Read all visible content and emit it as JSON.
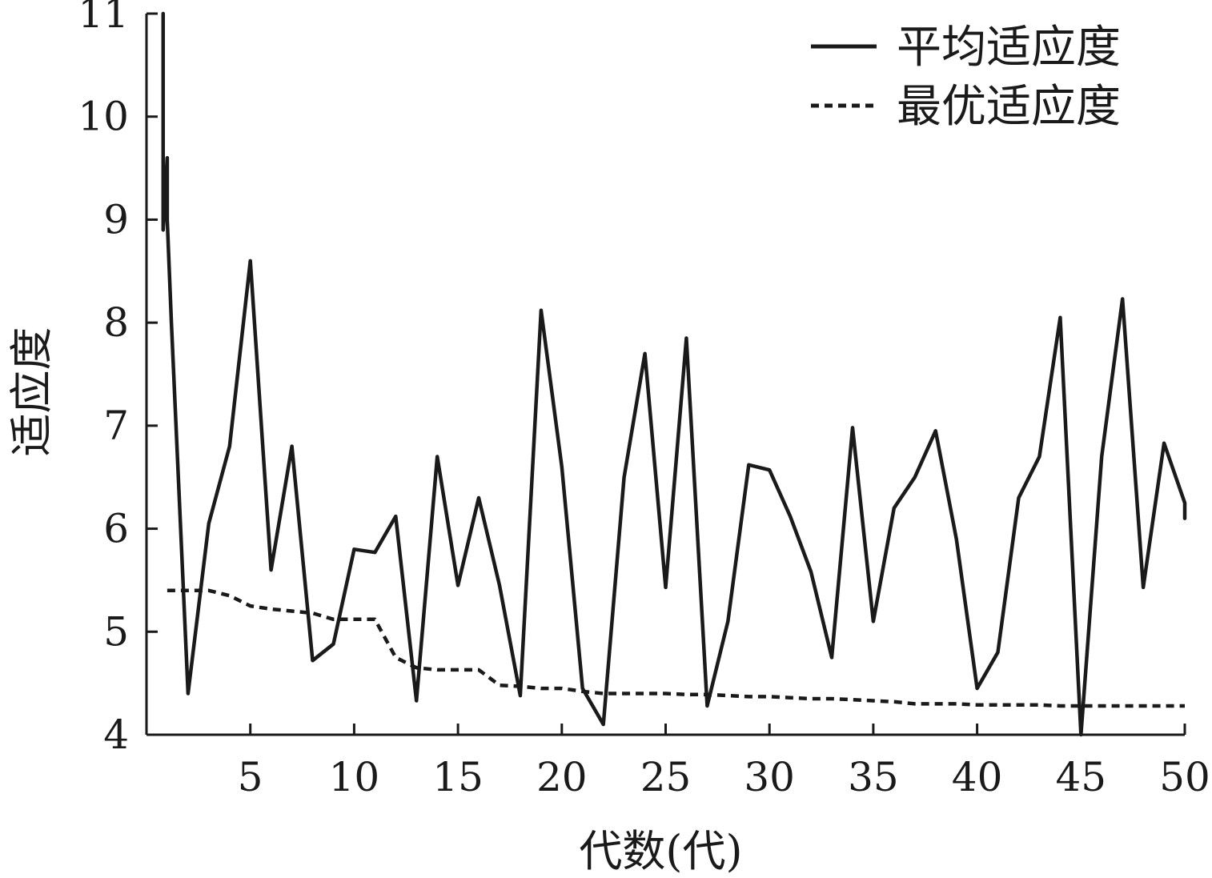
{
  "chart_data": {
    "type": "line",
    "title": "",
    "xlabel": "代数(代)",
    "ylabel": "适应度",
    "xlim": [
      0,
      50
    ],
    "ylim": [
      4,
      11
    ],
    "xticks": [
      5,
      10,
      15,
      20,
      25,
      30,
      35,
      40,
      45,
      50
    ],
    "xtick_labels": [
      "5",
      "10",
      "15",
      "20",
      "25",
      "30",
      "35",
      "40",
      "45",
      "50"
    ],
    "yticks": [
      4,
      5,
      6,
      7,
      8,
      9,
      10,
      11
    ],
    "ytick_labels": [
      "4",
      "5",
      "6",
      "7",
      "8",
      "9",
      "10",
      "11"
    ],
    "grid": false,
    "legend_position": "top-right",
    "series": [
      {
        "name": "平均适应度",
        "style": "solid",
        "color": "#1a1a1a",
        "x": [
          0.8,
          0.8,
          1,
          1,
          1.2,
          2,
          3,
          4,
          5,
          6,
          7,
          8,
          9,
          10,
          11,
          12,
          13,
          14,
          15,
          16,
          17,
          18,
          19,
          20,
          21,
          22,
          23,
          24,
          25,
          26,
          27,
          28,
          29,
          30,
          31,
          32,
          33,
          34,
          35,
          36,
          37,
          38,
          39,
          40,
          41,
          42,
          43,
          44,
          45,
          46,
          47,
          48,
          49,
          50,
          50
        ],
        "values": [
          11.0,
          8.9,
          9.6,
          9.0,
          8.0,
          4.4,
          6.05,
          6.8,
          8.6,
          5.6,
          6.8,
          4.72,
          4.88,
          5.8,
          5.77,
          6.12,
          4.33,
          6.7,
          5.45,
          6.3,
          5.45,
          4.38,
          8.12,
          6.6,
          4.45,
          4.1,
          6.5,
          7.7,
          5.43,
          7.85,
          4.28,
          5.1,
          6.62,
          6.57,
          6.12,
          5.58,
          4.75,
          6.98,
          5.1,
          6.2,
          6.5,
          6.95,
          5.9,
          4.45,
          4.8,
          6.3,
          6.7,
          8.05,
          4.0,
          6.7,
          8.23,
          5.43,
          6.83,
          6.25,
          6.1
        ]
      },
      {
        "name": "最优适应度",
        "style": "dashed",
        "color": "#1a1a1a",
        "x": [
          1,
          2,
          3,
          4,
          5,
          6,
          7,
          8,
          9,
          10,
          11,
          12,
          13,
          14,
          15,
          16,
          17,
          18,
          19,
          20,
          21,
          22,
          23,
          24,
          25,
          26,
          27,
          28,
          29,
          30,
          31,
          32,
          33,
          34,
          35,
          36,
          37,
          38,
          39,
          40,
          41,
          42,
          43,
          44,
          45,
          46,
          47,
          48,
          49,
          50
        ],
        "values": [
          5.4,
          5.4,
          5.4,
          5.35,
          5.25,
          5.22,
          5.2,
          5.18,
          5.12,
          5.12,
          5.12,
          4.75,
          4.65,
          4.63,
          4.63,
          4.63,
          4.48,
          4.47,
          4.45,
          4.45,
          4.42,
          4.4,
          4.4,
          4.4,
          4.4,
          4.39,
          4.39,
          4.38,
          4.37,
          4.37,
          4.36,
          4.35,
          4.35,
          4.34,
          4.33,
          4.32,
          4.3,
          4.3,
          4.3,
          4.29,
          4.29,
          4.29,
          4.29,
          4.28,
          4.28,
          4.28,
          4.28,
          4.28,
          4.28,
          4.28
        ]
      }
    ]
  }
}
